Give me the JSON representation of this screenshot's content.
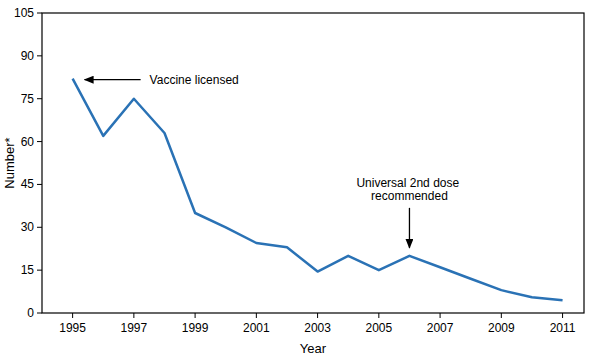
{
  "chart_data": {
    "type": "line",
    "x_label": "Year",
    "y_label": "Number*",
    "x": [
      1995,
      1996,
      1997,
      1998,
      1999,
      2000,
      2001,
      2002,
      2003,
      2004,
      2005,
      2006,
      2007,
      2008,
      2009,
      2010,
      2011
    ],
    "values": [
      82,
      62,
      75,
      63,
      35,
      30,
      24.5,
      23,
      14.5,
      20,
      15,
      20,
      16,
      12,
      8,
      5.5,
      4.5
    ],
    "color": "#2a72b5",
    "xlim": [
      1994,
      2011.7
    ],
    "xticks": [
      1995,
      1997,
      1999,
      2001,
      2003,
      2005,
      2007,
      2009,
      2011
    ],
    "ylim": [
      0,
      105
    ],
    "yticks": [
      0,
      15,
      30,
      45,
      60,
      75,
      90,
      105
    ],
    "grid": false,
    "annotations": [
      {
        "text": "Vaccine licensed",
        "x": 1995,
        "y": 82
      },
      {
        "text": "Universal 2nd dose recommended",
        "x": 2006,
        "y": 20
      }
    ]
  }
}
